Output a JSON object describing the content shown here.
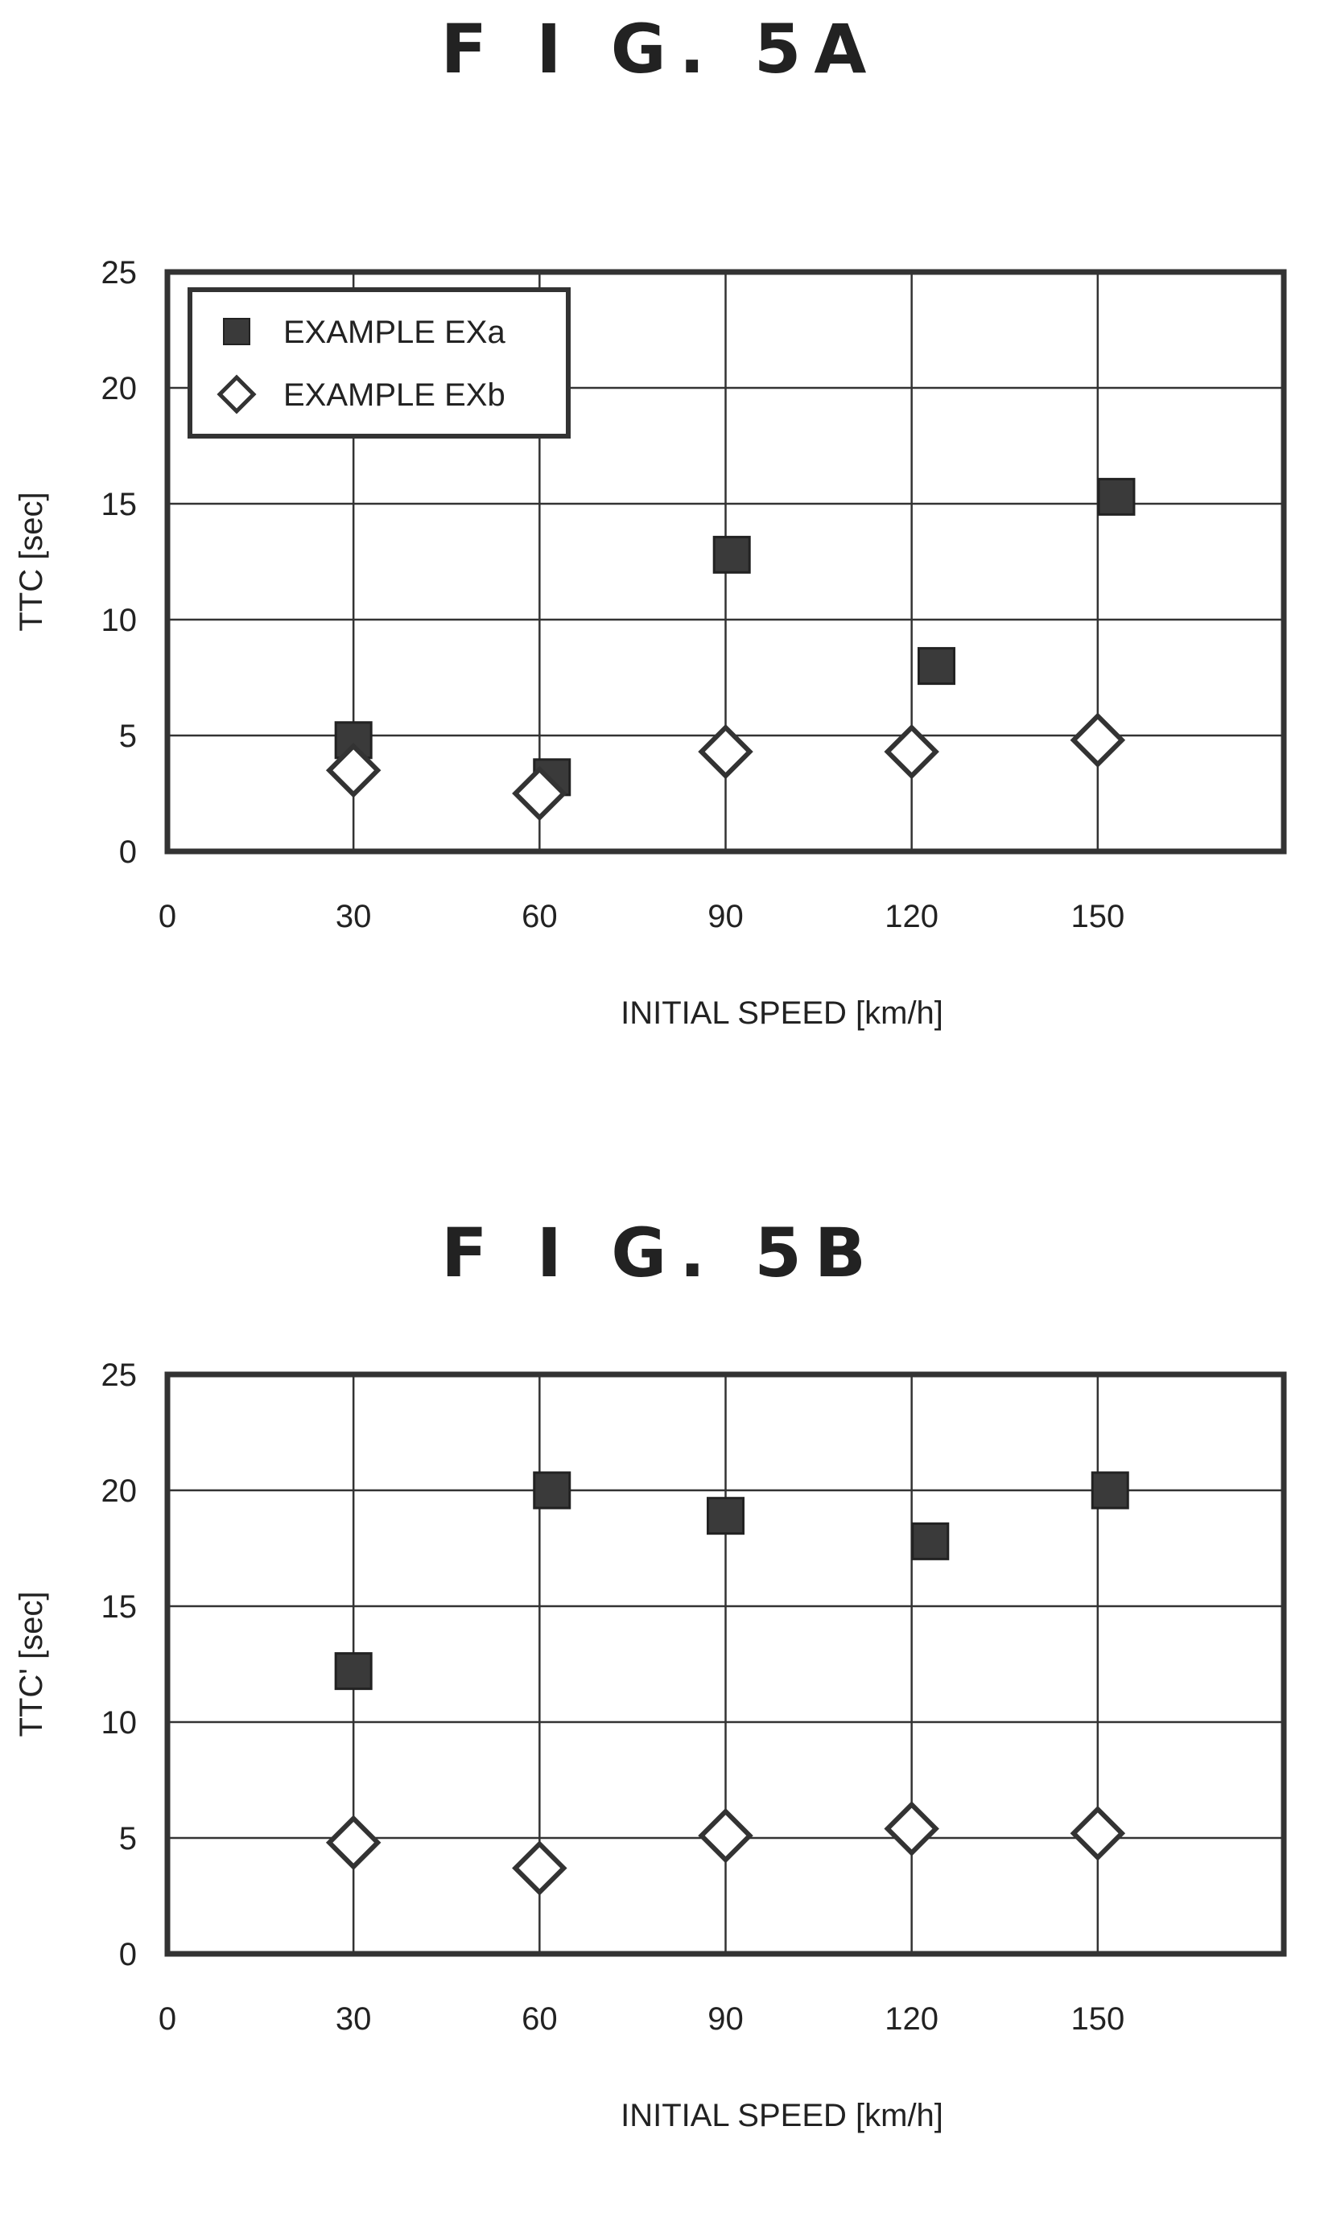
{
  "figures": [
    {
      "title": "F I G.  5A",
      "chart_data": {
        "type": "scatter",
        "xlabel": "INITIAL SPEED [km/h]",
        "ylabel": "TTC [sec]",
        "xlim": [
          0,
          180
        ],
        "ylim": [
          0,
          25
        ],
        "xticks": [
          "0",
          "30",
          "60",
          "90",
          "120",
          "150"
        ],
        "yticks": [
          "0",
          "5",
          "10",
          "15",
          "20",
          "25"
        ],
        "grid": true,
        "legend_position": "top-left",
        "series": [
          {
            "name": "EXAMPLE EXa",
            "marker": "filled-square",
            "color": "#333333",
            "x": [
              30,
              62,
              91,
              124,
              153
            ],
            "y": [
              4.8,
              3.2,
              12.8,
              8.0,
              15.3
            ]
          },
          {
            "name": "EXAMPLE EXb",
            "marker": "open-diamond",
            "color": "#333333",
            "x": [
              30,
              60,
              90,
              120,
              150
            ],
            "y": [
              3.5,
              2.5,
              4.3,
              4.3,
              4.8
            ]
          }
        ]
      }
    },
    {
      "title": "F I G.  5B",
      "chart_data": {
        "type": "scatter",
        "xlabel": "INITIAL SPEED [km/h]",
        "ylabel": "TTC' [sec]",
        "xlim": [
          0,
          180
        ],
        "ylim": [
          0,
          25
        ],
        "xticks": [
          "0",
          "30",
          "60",
          "90",
          "120",
          "150"
        ],
        "yticks": [
          "0",
          "5",
          "10",
          "15",
          "20",
          "25"
        ],
        "grid": true,
        "legend_position": "none",
        "series": [
          {
            "name": "EXAMPLE EXa",
            "marker": "filled-square",
            "color": "#333333",
            "x": [
              30,
              62,
              90,
              123,
              152
            ],
            "y": [
              12.2,
              20.0,
              18.9,
              17.8,
              20.0
            ]
          },
          {
            "name": "EXAMPLE EXb",
            "marker": "open-diamond",
            "color": "#333333",
            "x": [
              30,
              60,
              90,
              120,
              150
            ],
            "y": [
              4.8,
              3.7,
              5.1,
              5.4,
              5.2
            ]
          }
        ]
      }
    }
  ]
}
